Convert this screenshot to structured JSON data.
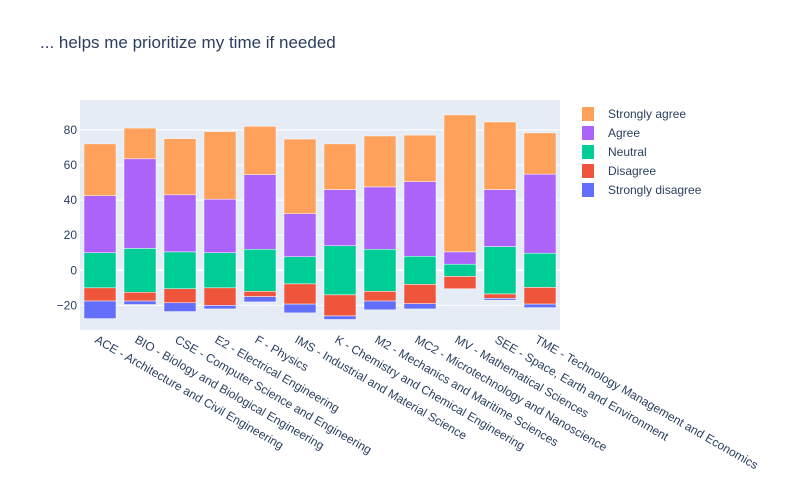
{
  "chart_data": {
    "type": "bar",
    "stacked": "diverging",
    "title": "... helps me prioritize my time if needed",
    "xlabel": "",
    "ylabel": "",
    "ylim": [
      -34,
      97
    ],
    "yticks": [
      -20,
      0,
      20,
      40,
      60,
      80
    ],
    "grid": true,
    "legend_position": "right",
    "categories": [
      "ACE - Architecture and Civil Engineering",
      "BIO - Biology and Biological Engineering",
      "CSE - Computer Science and Engineering",
      "E2 - Electrical Engineering",
      "F - Physics",
      "IMS - Industrial and Material Science",
      "K - Chemistry and Chemical Engineering",
      "M2 - Mechanics and Maritime Sciences",
      "MC2 - Microtechnology and Nanoscience",
      "MV - Mathematical Sciences",
      "SEE - Space, Earth and Environment",
      "TME - Technology Management and Economics"
    ],
    "series": [
      {
        "name": "Strongly disagree",
        "color": "#636efa",
        "direction": "negative",
        "values": [
          10,
          2,
          5,
          2,
          3,
          5,
          2,
          5,
          3,
          0,
          1,
          2
        ]
      },
      {
        "name": "Disagree",
        "color": "#ef553b",
        "direction": "negative",
        "values": [
          7.5,
          5,
          8,
          10,
          3,
          11.5,
          12,
          5.5,
          11,
          7,
          2.5,
          9.5
        ]
      },
      {
        "name": "Neutral",
        "color": "#00cc96",
        "direction": "split",
        "values": [
          20,
          25,
          21,
          20,
          24,
          15.5,
          28,
          24,
          16,
          7,
          27,
          19.5
        ]
      },
      {
        "name": "Agree",
        "color": "#ab63fa",
        "direction": "positive",
        "values": [
          32.5,
          51,
          32.5,
          30.5,
          42.5,
          24.5,
          32,
          35.5,
          42.5,
          7,
          32.5,
          45
        ]
      },
      {
        "name": "Strongly agree",
        "color": "#ffa15a",
        "direction": "positive",
        "values": [
          29.5,
          17.5,
          32,
          38.5,
          27.5,
          42.5,
          26,
          29,
          26.5,
          78,
          38.5,
          23.5
        ]
      }
    ],
    "legend_order": [
      "Strongly agree",
      "Agree",
      "Neutral",
      "Disagree",
      "Strongly disagree"
    ]
  }
}
